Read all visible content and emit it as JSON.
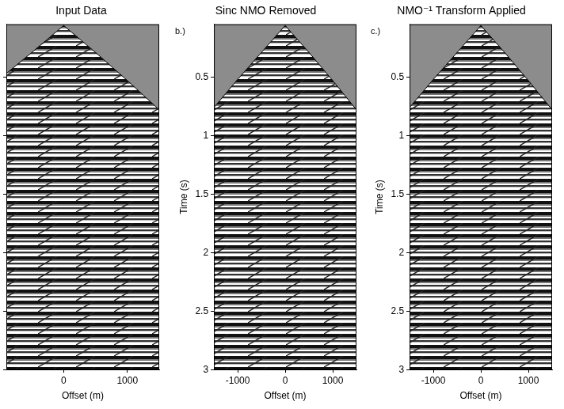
{
  "chart_data": [
    {
      "type": "line",
      "title": "Input Data",
      "x_label": "Offset (m)",
      "x": [
        -900,
        -500,
        0,
        500,
        1000,
        1500
      ],
      "series": [
        {
          "color": "#000000",
          "values": [
            0.47,
            0.29,
            0.06,
            0.29,
            0.53,
            0.78
          ]
        }
      ],
      "xlim": [
        -900,
        1500
      ],
      "xticks": [
        0,
        1000
      ],
      "ylim": [
        0.05,
        3
      ],
      "yticks": [
        0.5,
        1,
        1.5,
        2,
        2.5,
        3
      ],
      "grid": false,
      "tick_labels": "x"
    },
    {
      "type": "line",
      "title": "Sinc NMO Removed",
      "panel_label": "b.)",
      "x_label": "Offset (m)",
      "y_label": "Time (s)",
      "x": [
        -1500,
        -1000,
        -500,
        0,
        500,
        1000,
        1500
      ],
      "series": [
        {
          "color": "#000000",
          "values": [
            0.76,
            0.52,
            0.29,
            0.06,
            0.29,
            0.53,
            0.78
          ]
        }
      ],
      "xlim": [
        -1500,
        1500
      ],
      "xticks": [
        -1000,
        0,
        1000
      ],
      "ylim": [
        0.05,
        3
      ],
      "yticks": [
        0.5,
        1,
        1.5,
        2,
        2.5,
        3
      ],
      "grid": false
    },
    {
      "type": "line",
      "title": "NMO⁻¹ Transform Applied",
      "panel_label": "c.)",
      "x_label": "Offset (m)",
      "y_label": "Time (s)",
      "x": [
        -1500,
        -1000,
        -500,
        0,
        500,
        1000,
        1500
      ],
      "series": [
        {
          "color": "#000000",
          "values": [
            0.76,
            0.52,
            0.29,
            0.06,
            0.29,
            0.53,
            0.78
          ]
        }
      ],
      "xlim": [
        -1500,
        1500
      ],
      "xticks": [
        -1000,
        0,
        1000
      ],
      "ylim": [
        0.05,
        3
      ],
      "yticks": [
        0.5,
        1,
        1.5,
        2,
        2.5,
        3
      ],
      "grid": false
    }
  ]
}
